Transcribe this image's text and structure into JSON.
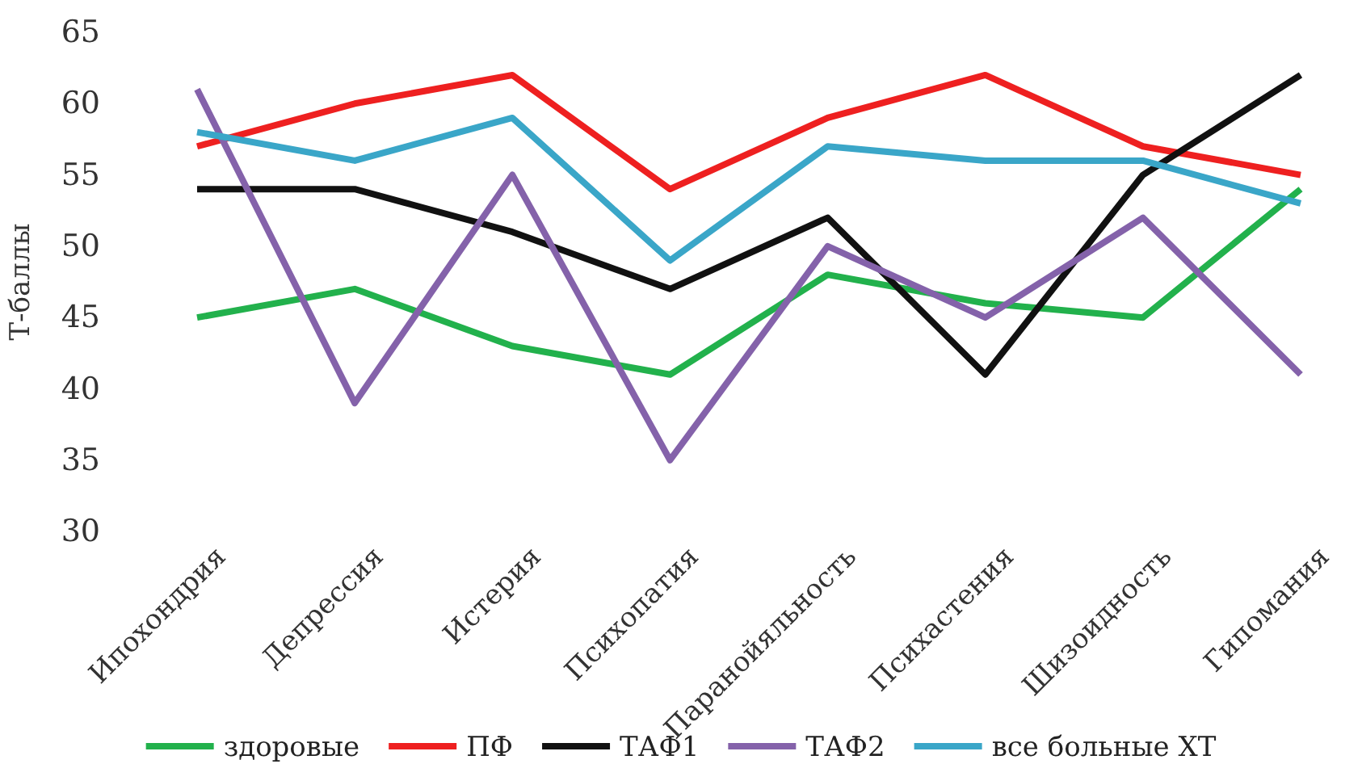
{
  "chart_data": {
    "type": "line",
    "ylabel": "Т-баллы",
    "categories": [
      "Ипохондрия",
      "Депрессия",
      "Истерия",
      "Психопатия",
      "Паранойяльность",
      "Психастения",
      "Шизоидность",
      "Гипомания"
    ],
    "ylim": [
      30,
      65
    ],
    "yticks": [
      30,
      35,
      40,
      45,
      50,
      55,
      60,
      65
    ],
    "grid": false,
    "legend": "bottom",
    "line_style": "solid",
    "marker": "none",
    "series": [
      {
        "name": "здоровые",
        "color": "#22b14c",
        "values": [
          45,
          47,
          43,
          41,
          48,
          46,
          45,
          54
        ]
      },
      {
        "name": "ПФ",
        "color": "#ee2020",
        "values": [
          57,
          60,
          62,
          54,
          59,
          62,
          57,
          55
        ]
      },
      {
        "name": "ТАФ1",
        "color": "#111111",
        "values": [
          54,
          54,
          51,
          47,
          52,
          41,
          55,
          62
        ]
      },
      {
        "name": "ТАФ2",
        "color": "#8462aa",
        "values": [
          61,
          39,
          55,
          35,
          50,
          45,
          52,
          41
        ]
      },
      {
        "name": "все больные ХТ",
        "color": "#3aa6c8",
        "values": [
          58,
          56,
          59,
          49,
          57,
          56,
          56,
          53
        ]
      }
    ]
  }
}
